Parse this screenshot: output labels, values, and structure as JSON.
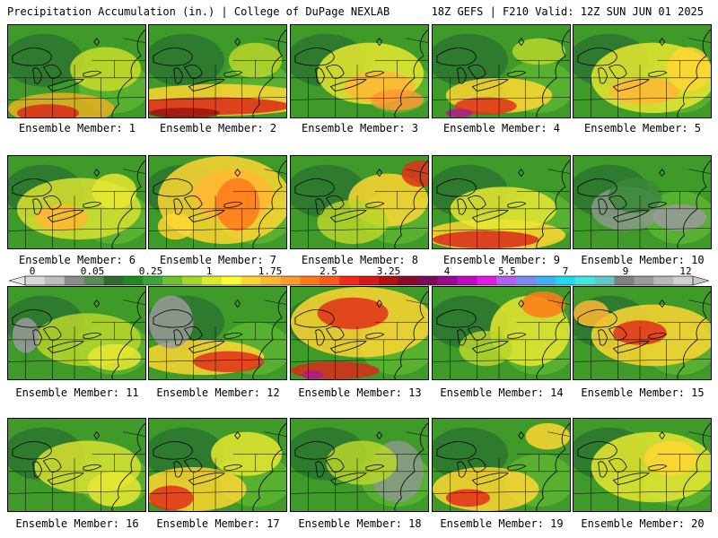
{
  "header": {
    "left": "Precipitation Accumulation (in.) | College of DuPage NEXLAB",
    "right": "18Z GEFS | F210 Valid: 12Z SUN JUN 01 2025"
  },
  "panels": [
    {
      "label": "Ensemble Member: 1"
    },
    {
      "label": "Ensemble Member: 2"
    },
    {
      "label": "Ensemble Member: 3"
    },
    {
      "label": "Ensemble Member: 4"
    },
    {
      "label": "Ensemble Member: 5"
    },
    {
      "label": "Ensemble Member: 6"
    },
    {
      "label": "Ensemble Member: 7"
    },
    {
      "label": "Ensemble Member: 8"
    },
    {
      "label": "Ensemble Member: 9"
    },
    {
      "label": "Ensemble Member: 10"
    },
    {
      "label": "Ensemble Member: 11"
    },
    {
      "label": "Ensemble Member: 12"
    },
    {
      "label": "Ensemble Member: 13"
    },
    {
      "label": "Ensemble Member: 14"
    },
    {
      "label": "Ensemble Member: 15"
    },
    {
      "label": "Ensemble Member: 16"
    },
    {
      "label": "Ensemble Member: 17"
    },
    {
      "label": "Ensemble Member: 18"
    },
    {
      "label": "Ensemble Member: 19"
    },
    {
      "label": "Ensemble Member: 20"
    }
  ],
  "colorbar": {
    "ticks": [
      "0",
      "0.05",
      "0.25",
      "1",
      "1.75",
      "2.5",
      "3.25",
      "4",
      "5.5",
      "7",
      "9",
      "12"
    ],
    "colors": [
      "#d9d9d9",
      "#bdbdbd",
      "#8c8c8c",
      "#5a8c5a",
      "#2e6b2e",
      "#1f8a1f",
      "#3aa63a",
      "#6fc22e",
      "#a6d62a",
      "#dcea2a",
      "#ffff33",
      "#ffd633",
      "#ffb733",
      "#ff9933",
      "#ff7a1a",
      "#ff5a1a",
      "#f22a1a",
      "#d61a1a",
      "#b01010",
      "#8a0a2a",
      "#7a0a5a",
      "#9a0a8a",
      "#c00ac0",
      "#e01ae0",
      "#b060f0",
      "#7a8af0",
      "#40b0f0",
      "#20d8f0",
      "#40e8e0",
      "#60c8c8",
      "#808080",
      "#9a9a9a",
      "#b8b8b8",
      "#d0d0d0"
    ]
  }
}
